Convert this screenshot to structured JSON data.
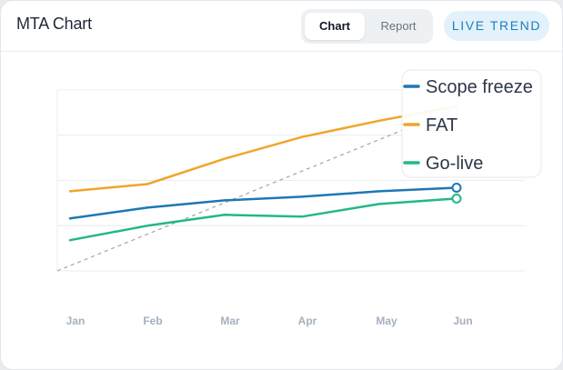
{
  "header": {
    "title": "MTA Chart",
    "tabs": [
      {
        "label": "Chart",
        "active": true
      },
      {
        "label": "Report",
        "active": false
      }
    ],
    "badge": "LIVE TREND"
  },
  "colors": {
    "scope_freeze": "#1f77b4",
    "fat": "#f0a52a",
    "go_live": "#22b888",
    "trend": "#a0a4aa",
    "grid": "#e9ecf1",
    "tick": "#a5b0c0"
  },
  "chart_data": {
    "type": "line",
    "title": "",
    "xlabel": "",
    "ylabel": "",
    "categories": [
      "Jan",
      "Feb",
      "Mar",
      "Apr",
      "May",
      "Jun"
    ],
    "ylim": [
      0,
      100
    ],
    "grid": true,
    "legend": "top-right",
    "series": [
      {
        "name": "Scope freeze",
        "color_key": "scope_freeze",
        "values": [
          29,
          35,
          39,
          41,
          44,
          46
        ],
        "end_marker": true
      },
      {
        "name": "FAT",
        "color_key": "fat",
        "values": [
          44,
          48,
          62,
          74,
          83,
          91
        ],
        "end_marker": false
      },
      {
        "name": "Go-live",
        "color_key": "go_live",
        "values": [
          17,
          25,
          31,
          30,
          37,
          40
        ],
        "end_marker": true
      }
    ],
    "trend_line": {
      "style": "dashed",
      "from": 0,
      "to": 90
    }
  }
}
